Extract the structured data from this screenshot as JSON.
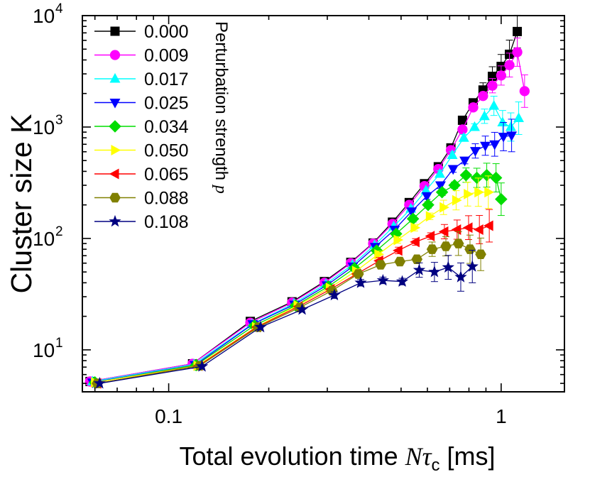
{
  "chart_data": {
    "type": "scatter",
    "xscale": "log",
    "yscale": "log",
    "xlim": [
      0.055,
      1.55
    ],
    "ylim": [
      4.2,
      10000
    ],
    "x_ticks": [
      {
        "value": 0.1,
        "label": "0.1"
      },
      {
        "value": 1,
        "label": "1"
      }
    ],
    "y_ticks": [
      {
        "value": 10,
        "base": "10",
        "exp": "1"
      },
      {
        "value": 100,
        "base": "10",
        "exp": "2"
      },
      {
        "value": 1000,
        "base": "10",
        "exp": "3"
      },
      {
        "value": 10000,
        "base": "10",
        "exp": "4"
      }
    ],
    "xlabel": {
      "prefix": "Total evolution time ",
      "symbol": "N",
      "tau": "τ",
      "sub": "c",
      "suffix": " [ms]"
    },
    "ylabel": "Cluster size K",
    "legend": {
      "title": "Perturbation strength ",
      "title_symbol": "p",
      "position": "top-left"
    },
    "series": [
      {
        "name": "0.000",
        "color": "#000000",
        "marker": "square",
        "x": [
          0.058,
          0.118,
          0.176,
          0.235,
          0.294,
          0.353,
          0.412,
          0.471,
          0.529,
          0.588,
          0.647,
          0.706,
          0.765,
          0.824,
          0.882,
          0.941,
          1.0,
          1.059,
          1.118
        ],
        "y": [
          5.2,
          7.5,
          18,
          27,
          41,
          61,
          91,
          140,
          210,
          310,
          440,
          650,
          1150,
          1650,
          2150,
          2850,
          3500,
          4500,
          7200
        ]
      },
      {
        "name": "0.009",
        "color": "#ff00ff",
        "marker": "circle",
        "x": [
          0.058,
          0.118,
          0.176,
          0.235,
          0.294,
          0.353,
          0.412,
          0.471,
          0.529,
          0.588,
          0.647,
          0.706,
          0.765,
          0.824,
          0.882,
          0.941,
          1.0,
          1.059,
          1.118,
          1.176
        ],
        "y": [
          5.2,
          7.5,
          17.5,
          26.5,
          40,
          60,
          90,
          135,
          200,
          295,
          420,
          620,
          950,
          1500,
          1900,
          2350,
          2900,
          3600,
          4700,
          2100
        ]
      },
      {
        "name": "0.017",
        "color": "#00ffff",
        "marker": "triangle-up",
        "x": [
          0.059,
          0.119,
          0.178,
          0.238,
          0.297,
          0.357,
          0.416,
          0.475,
          0.535,
          0.594,
          0.654,
          0.713,
          0.772,
          0.832,
          0.891,
          0.951,
          1.01,
          1.069,
          1.129
        ],
        "y": [
          5.2,
          7.4,
          17,
          26,
          39,
          58,
          87,
          128,
          185,
          270,
          380,
          560,
          800,
          1000,
          1250,
          1550,
          1100,
          1000,
          1200
        ]
      },
      {
        "name": "0.025",
        "color": "#0000ff",
        "marker": "triangle-down",
        "x": [
          0.059,
          0.12,
          0.179,
          0.239,
          0.299,
          0.358,
          0.418,
          0.478,
          0.538,
          0.598,
          0.657,
          0.717,
          0.777,
          0.836,
          0.896,
          0.956,
          1.016,
          1.075
        ],
        "y": [
          5.1,
          7.3,
          17,
          25.5,
          38,
          56,
          84,
          120,
          175,
          240,
          300,
          420,
          500,
          610,
          680,
          700,
          820,
          840
        ]
      },
      {
        "name": "0.034",
        "color": "#00dd00",
        "marker": "diamond",
        "x": [
          0.06,
          0.121,
          0.181,
          0.241,
          0.302,
          0.362,
          0.422,
          0.483,
          0.543,
          0.603,
          0.664,
          0.724,
          0.784,
          0.845,
          0.905,
          0.965,
          1.0
        ],
        "y": [
          5.1,
          7.3,
          16.5,
          25,
          37,
          54,
          78,
          110,
          150,
          200,
          260,
          300,
          370,
          350,
          370,
          350,
          225
        ]
      },
      {
        "name": "0.050",
        "color": "#ffff00",
        "marker": "triangle-right",
        "x": [
          0.06,
          0.122,
          0.183,
          0.244,
          0.305,
          0.366,
          0.427,
          0.488,
          0.549,
          0.61,
          0.671,
          0.732,
          0.793,
          0.854,
          0.915
        ],
        "y": [
          5.1,
          7.2,
          16,
          25,
          36,
          51,
          72,
          97,
          125,
          158,
          190,
          220,
          250,
          260,
          260
        ]
      },
      {
        "name": "0.065",
        "color": "#ff0000",
        "marker": "triangle-left",
        "x": [
          0.061,
          0.123,
          0.184,
          0.246,
          0.307,
          0.368,
          0.43,
          0.491,
          0.553,
          0.614,
          0.675,
          0.737,
          0.798,
          0.86,
          0.921
        ],
        "y": [
          5,
          7.2,
          16,
          24.5,
          35,
          48,
          63,
          78,
          93,
          105,
          115,
          120,
          125,
          120,
          130
        ]
      },
      {
        "name": "0.088",
        "color": "#808000",
        "marker": "hexagon",
        "x": [
          0.061,
          0.124,
          0.186,
          0.248,
          0.31,
          0.372,
          0.434,
          0.496,
          0.558,
          0.62,
          0.682,
          0.744,
          0.806,
          0.868
        ],
        "y": [
          5,
          7.2,
          16,
          24,
          34,
          48,
          58,
          62,
          65,
          80,
          85,
          90,
          80,
          72
        ]
      },
      {
        "name": "0.108",
        "color": "#000080",
        "marker": "star",
        "x": [
          0.062,
          0.126,
          0.189,
          0.252,
          0.315,
          0.378,
          0.441,
          0.504,
          0.567,
          0.63,
          0.693,
          0.756,
          0.819
        ],
        "y": [
          5,
          7.1,
          16,
          23,
          31,
          40,
          42,
          41,
          52,
          50,
          55,
          45,
          56
        ]
      }
    ]
  }
}
